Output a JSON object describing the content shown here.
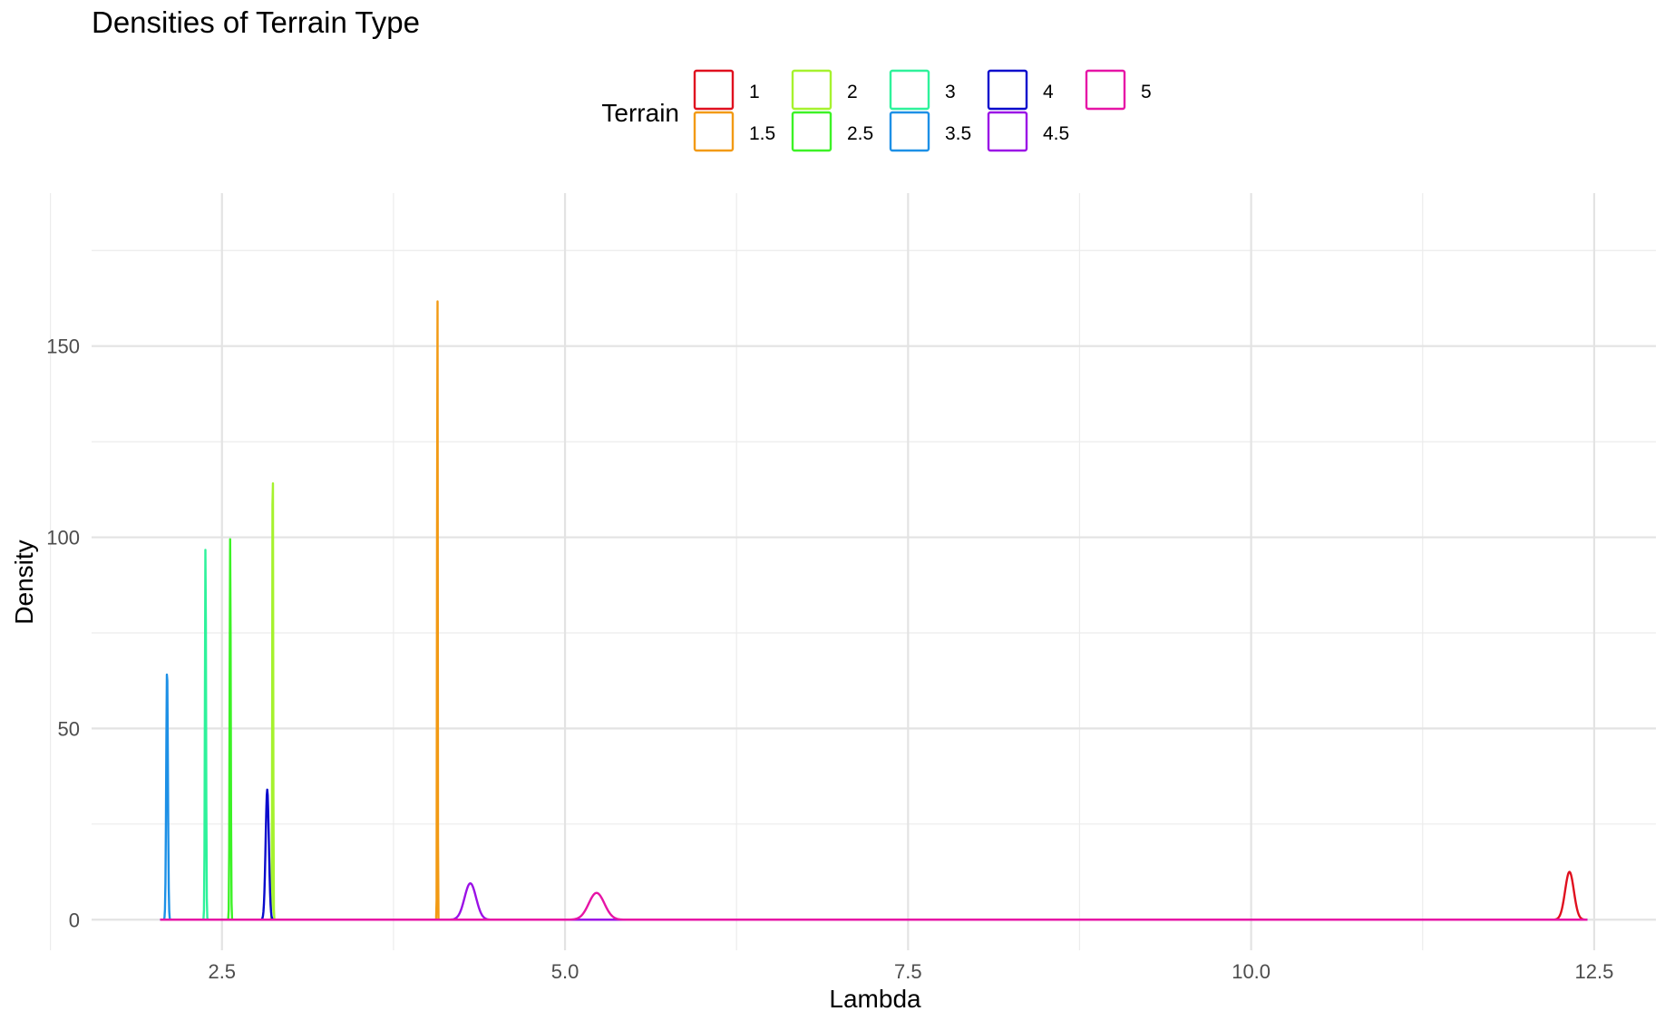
{
  "chart_data": {
    "type": "line",
    "title": "Densities of Terrain Type",
    "xlabel": "Lambda",
    "ylabel": "Density",
    "xlim": [
      1.55,
      12.95
    ],
    "ylim": [
      -8,
      190
    ],
    "xticks": [
      2.5,
      5.0,
      7.5,
      10.0,
      12.5
    ],
    "xtick_labels": [
      "2.5",
      "5.0",
      "7.5",
      "10.0",
      "12.5"
    ],
    "yticks": [
      0,
      50,
      100,
      150
    ],
    "ytick_labels": [
      "0",
      "50",
      "100",
      "150"
    ],
    "grid": true,
    "legend": {
      "title": "Terrain",
      "position": "top",
      "entries": [
        "1",
        "1.5",
        "2",
        "2.5",
        "3",
        "3.5",
        "4",
        "4.5",
        "5"
      ]
    },
    "x_range": [
      2.05,
      12.45
    ],
    "series": [
      {
        "name": "1",
        "color": "#e0101f",
        "mean": 12.32,
        "peak": 12.5
      },
      {
        "name": "1.5",
        "color": "#f29a14",
        "mean": 4.07,
        "peak": 182
      },
      {
        "name": "2",
        "color": "#a6f22e",
        "mean": 2.87,
        "peak": 131
      },
      {
        "name": "2.5",
        "color": "#3cf226",
        "mean": 2.56,
        "peak": 100
      },
      {
        "name": "3",
        "color": "#2ef29b",
        "mean": 2.38,
        "peak": 98
      },
      {
        "name": "3.5",
        "color": "#1d90e6",
        "mean": 2.1,
        "peak": 66
      },
      {
        "name": "4",
        "color": "#0a0acc",
        "mean": 2.83,
        "peak": 34
      },
      {
        "name": "4.5",
        "color": "#9b11e6",
        "mean": 4.31,
        "peak": 9.5
      },
      {
        "name": "5",
        "color": "#e614a6",
        "mean": 5.23,
        "peak": 7
      }
    ]
  }
}
